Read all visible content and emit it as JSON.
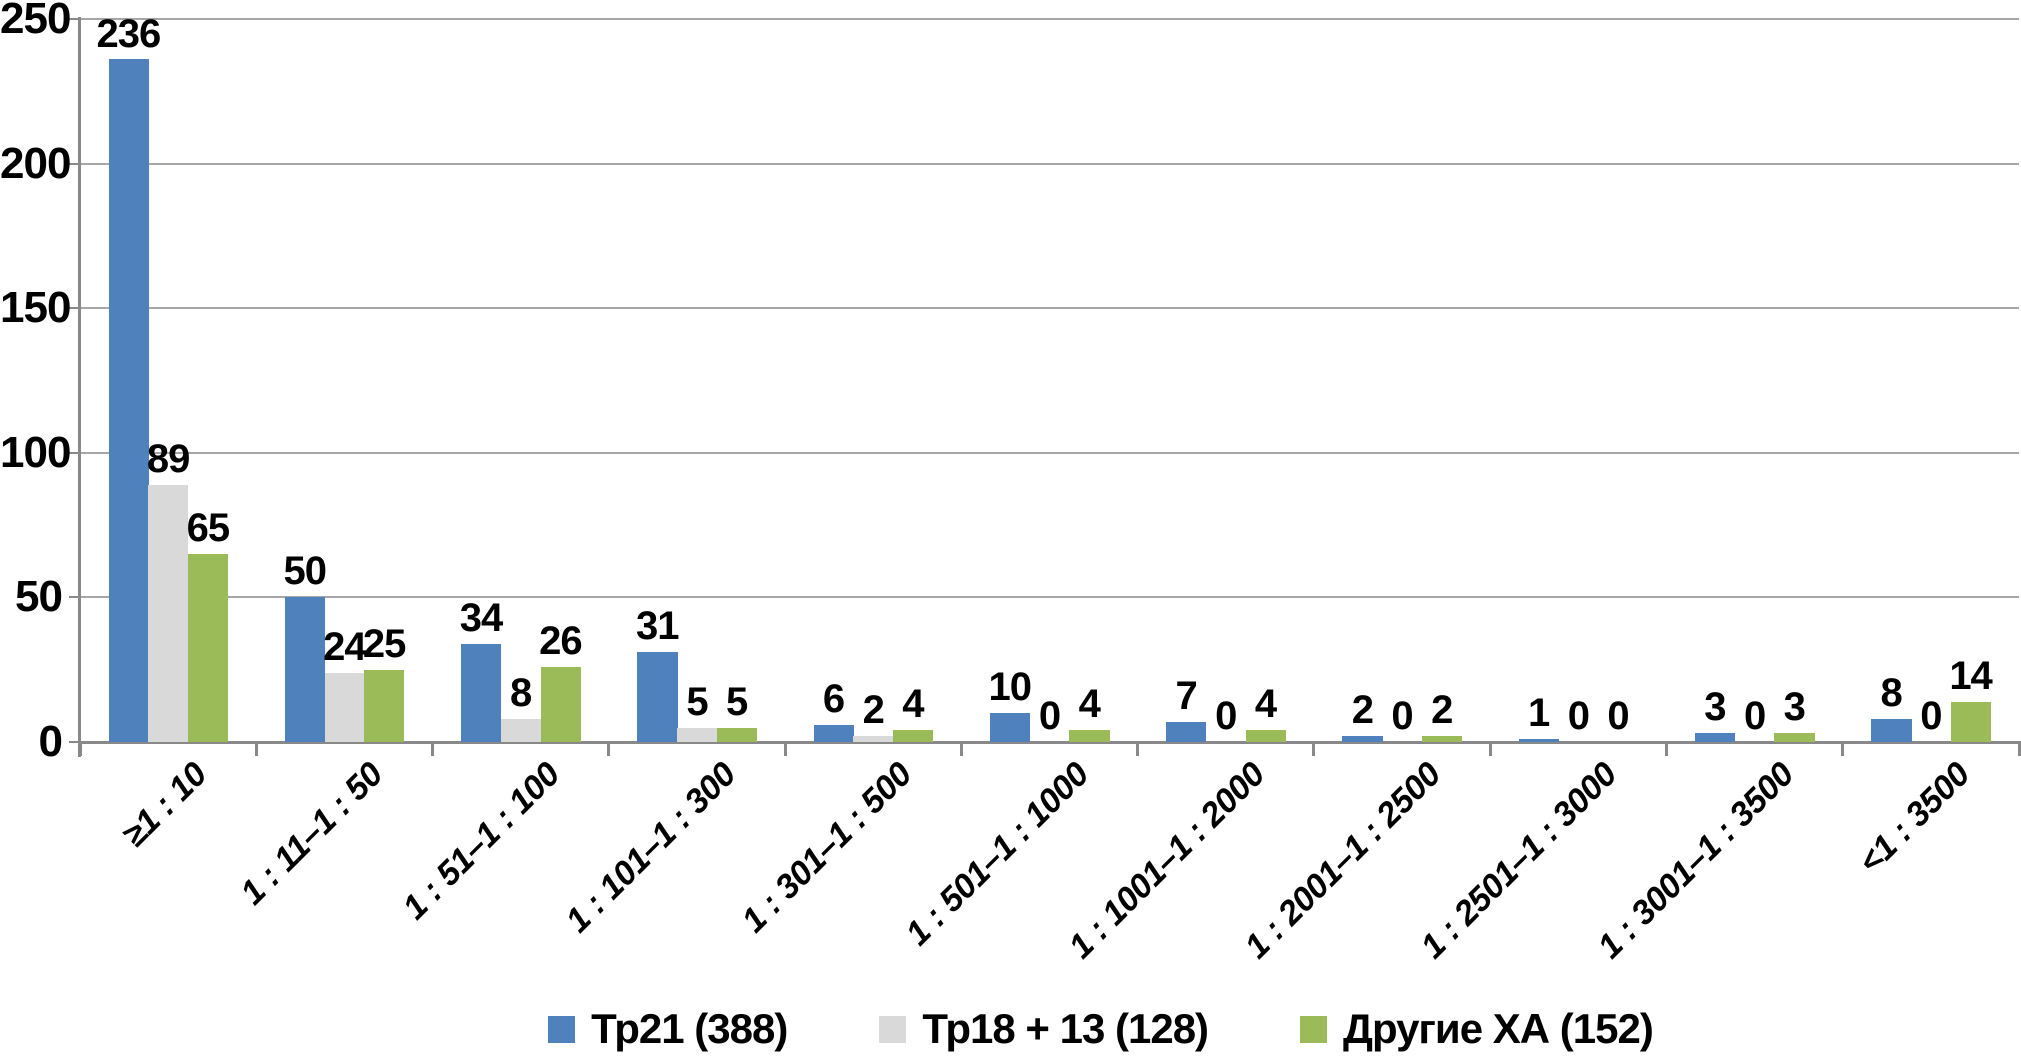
{
  "chart_data": {
    "type": "bar",
    "title": "",
    "xlabel": "",
    "ylabel": "",
    "categories": [
      "≥1 : 10",
      "1 : 11–1 : 50",
      "1 : 51–1 : 100",
      "1 : 101–1 : 300",
      "1 : 301–1 : 500",
      "1 : 501–1 : 1000",
      "1 : 1001–1 : 2000",
      "1 : 2001–1 : 2500",
      "1 : 2501–1 : 3000",
      "1 : 3001–1 : 3500",
      "<1 : 3500"
    ],
    "series": [
      {
        "name": "Тр21 (388)",
        "color": "#4F81BD",
        "values": [
          236,
          50,
          34,
          31,
          6,
          10,
          7,
          2,
          1,
          3,
          8
        ]
      },
      {
        "name": "Тр18 + 13 (128)",
        "color": "#D9D9D9",
        "values": [
          89,
          24,
          8,
          5,
          2,
          0,
          0,
          0,
          0,
          0,
          0
        ]
      },
      {
        "name": "Другие ХА (152)",
        "color": "#9BBB59",
        "values": [
          65,
          25,
          26,
          5,
          4,
          4,
          4,
          2,
          0,
          3,
          14
        ]
      }
    ],
    "ylim": [
      0,
      250
    ],
    "yticks": [
      0,
      50,
      100,
      150,
      200,
      250
    ],
    "grid": true,
    "data_labels": true,
    "legend_position": "bottom",
    "colors": {
      "gridline": "#A6A6A6",
      "axis": "#898989",
      "text": "#000000",
      "background": "#FFFFFF"
    }
  }
}
